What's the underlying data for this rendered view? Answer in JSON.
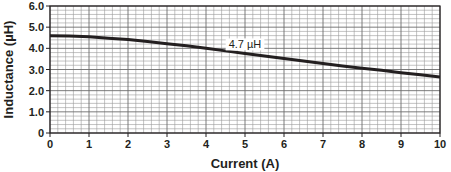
{
  "chart_data": {
    "type": "line",
    "x_label": "Current (A)",
    "y_label": "Inductance (µH)",
    "x": [
      0,
      0.5,
      1,
      1.5,
      2,
      2.5,
      3,
      3.5,
      4,
      4.5,
      5,
      5.5,
      6,
      6.5,
      7,
      7.5,
      8,
      8.5,
      9,
      9.5,
      10
    ],
    "series": [
      {
        "name": "4.7 µH",
        "color": "#231f20",
        "values": [
          4.6,
          4.58,
          4.55,
          4.48,
          4.42,
          4.32,
          4.22,
          4.12,
          4.0,
          3.88,
          3.76,
          3.64,
          3.52,
          3.4,
          3.28,
          3.17,
          3.06,
          2.96,
          2.85,
          2.75,
          2.65
        ]
      }
    ],
    "xlim": [
      0,
      10
    ],
    "xticks": [
      0,
      1,
      2,
      3,
      4,
      5,
      6,
      7,
      8,
      9,
      10
    ],
    "ylim": [
      0,
      6
    ],
    "yticks": [
      0,
      {
        "value": 1,
        "label": "1.0"
      },
      {
        "value": 2,
        "label": "2.0"
      },
      {
        "value": 3,
        "label": "3.0"
      },
      {
        "value": 4,
        "label": "4.0"
      },
      {
        "value": 5,
        "label": "5.0"
      },
      {
        "value": 6,
        "label": "6.0"
      }
    ],
    "grid": true
  }
}
